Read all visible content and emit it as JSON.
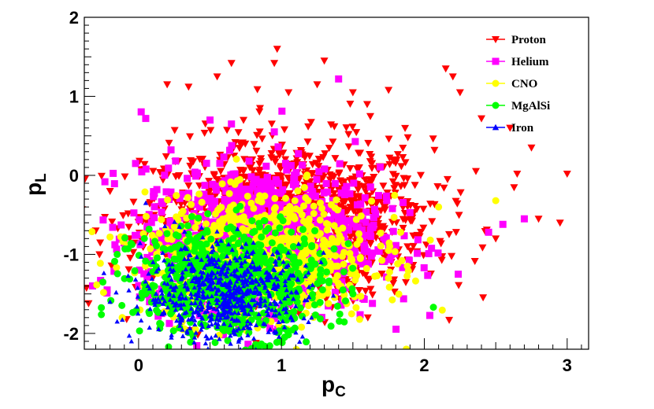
{
  "chart_data": {
    "type": "scatter",
    "title": "",
    "xlabel": "p",
    "xlabel_subscript": "C",
    "ylabel": "p",
    "ylabel_subscript": "L",
    "xlim": [
      -0.38,
      3.15
    ],
    "ylim": [
      -2.2,
      2.0
    ],
    "x_ticks": [
      0,
      1,
      2,
      3
    ],
    "x_tick_labels": [
      "0",
      "1",
      "2",
      "3"
    ],
    "y_ticks": [
      -2,
      -1,
      0,
      1,
      2
    ],
    "y_tick_labels": [
      "-2",
      "-1",
      "0",
      "1",
      "2"
    ],
    "grid": false,
    "legend_position": "top-right",
    "series": [
      {
        "name": "Proton",
        "marker": "triangle-down",
        "color": "#ff0000",
        "center": [
          1.05,
          -0.55
        ],
        "spread": [
          0.5,
          0.5
        ],
        "count": 1300,
        "outliers": [
          [
            0.2,
            1.15
          ],
          [
            0.35,
            1.12
          ],
          [
            0.55,
            1.25
          ],
          [
            0.65,
            1.42
          ],
          [
            0.95,
            1.42
          ],
          [
            0.97,
            1.6
          ],
          [
            1.05,
            1.05
          ],
          [
            1.3,
            1.45
          ],
          [
            1.25,
            1.15
          ],
          [
            1.5,
            1.05
          ],
          [
            1.75,
            1.08
          ],
          [
            2.2,
            1.25
          ],
          [
            2.25,
            1.05
          ],
          [
            2.15,
            1.35
          ],
          [
            2.6,
            0.6
          ],
          [
            2.75,
            0.35
          ],
          [
            3.0,
            0.02
          ],
          [
            2.95,
            -0.6
          ],
          [
            2.8,
            -0.55
          ],
          [
            2.65,
            0.02
          ],
          [
            -0.35,
            -1.62
          ],
          [
            -0.3,
            -0.7
          ],
          [
            -0.2,
            -0.2
          ],
          [
            0.85,
            0.85
          ],
          [
            1.6,
            0.9
          ],
          [
            2.4,
            0.72
          ],
          [
            2.5,
            -0.8
          ]
        ]
      },
      {
        "name": "Helium",
        "marker": "square",
        "color": "#ff00ff",
        "center": [
          0.85,
          -0.8
        ],
        "spread": [
          0.42,
          0.45
        ],
        "count": 1100,
        "outliers": [
          [
            0.05,
            0.72
          ],
          [
            1.4,
            1.22
          ],
          [
            0.65,
            0.65
          ],
          [
            0.95,
            0.55
          ],
          [
            2.55,
            -0.62
          ],
          [
            2.7,
            -0.55
          ],
          [
            2.45,
            -0.72
          ],
          [
            -0.22,
            -1.45
          ],
          [
            0.5,
            0.7
          ]
        ]
      },
      {
        "name": "CNO",
        "marker": "circle",
        "color": "#ffff00",
        "center": [
          0.85,
          -1.05
        ],
        "spread": [
          0.4,
          0.38
        ],
        "count": 850,
        "outliers": [
          [
            2.5,
            -0.32
          ],
          [
            2.1,
            -0.4
          ],
          [
            -0.2,
            -0.78
          ],
          [
            1.75,
            -0.95
          ]
        ]
      },
      {
        "name": "MgAlSi",
        "marker": "circle",
        "color": "#00ff00",
        "center": [
          0.65,
          -1.35
        ],
        "spread": [
          0.33,
          0.35
        ],
        "count": 750,
        "outliers": [
          [
            -0.15,
            -1.0
          ],
          [
            -0.25,
            -1.35
          ],
          [
            1.5,
            -1.5
          ]
        ]
      },
      {
        "name": "Iron",
        "marker": "triangle-up",
        "color": "#0000ff",
        "center": [
          0.6,
          -1.5
        ],
        "spread": [
          0.28,
          0.3
        ],
        "count": 650,
        "outliers": [
          [
            -0.2,
            -1.6
          ],
          [
            -0.15,
            -1.85
          ],
          [
            -0.05,
            -2.1
          ],
          [
            0.05,
            -0.35
          ]
        ]
      }
    ]
  }
}
